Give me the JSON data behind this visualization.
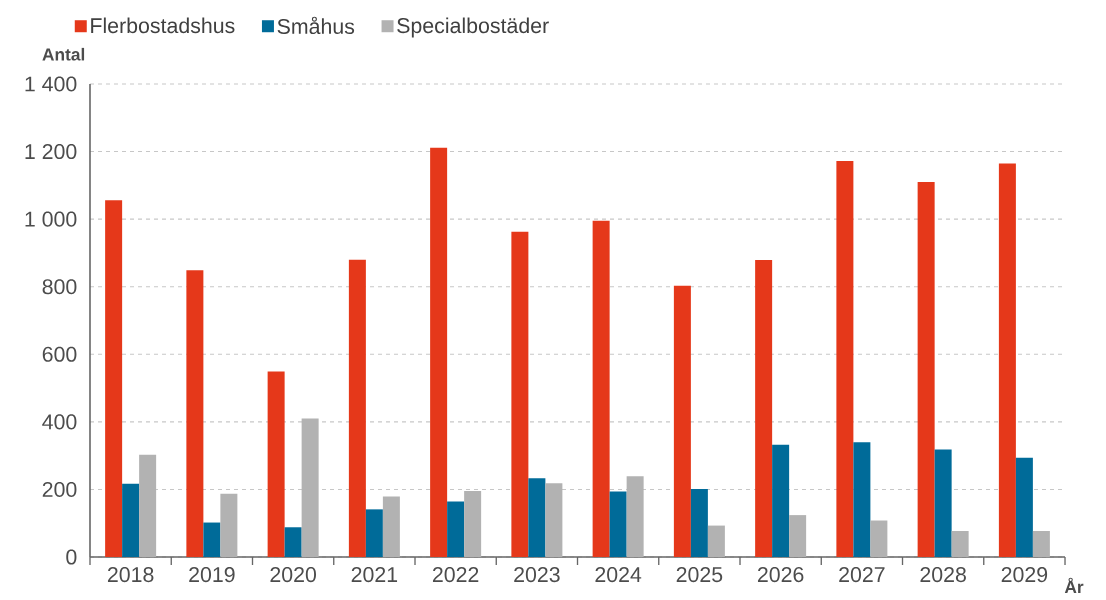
{
  "chart_data": {
    "type": "bar",
    "xlabel": "År",
    "ylabel": "Antal",
    "categories": [
      "2018",
      "2019",
      "2020",
      "2021",
      "2022",
      "2023",
      "2024",
      "2025",
      "2026",
      "2027",
      "2028",
      "2029"
    ],
    "series": [
      {
        "name": "Flerbostadshus",
        "color": "#e5381a",
        "values": [
          1056,
          849,
          549,
          880,
          1211,
          963,
          995,
          803,
          879,
          1172,
          1110,
          1165
        ]
      },
      {
        "name": "Småhus",
        "color": "#006b99",
        "values": [
          217,
          102,
          88,
          141,
          164,
          233,
          194,
          201,
          332,
          340,
          318,
          294
        ]
      },
      {
        "name": "Specialbostäder",
        "color": "#b2b2b2",
        "values": [
          303,
          187,
          410,
          179,
          195,
          218,
          239,
          93,
          124,
          108,
          77,
          77
        ]
      }
    ],
    "ylim": [
      0,
      1400
    ],
    "yticks": [
      0,
      200,
      400,
      600,
      800,
      {
        "value": 1000,
        "label": "1 000"
      },
      {
        "value": 1200,
        "label": "1 200"
      },
      {
        "value": 1400,
        "label": "1 400"
      }
    ],
    "grid": "y",
    "legend": "top left"
  }
}
